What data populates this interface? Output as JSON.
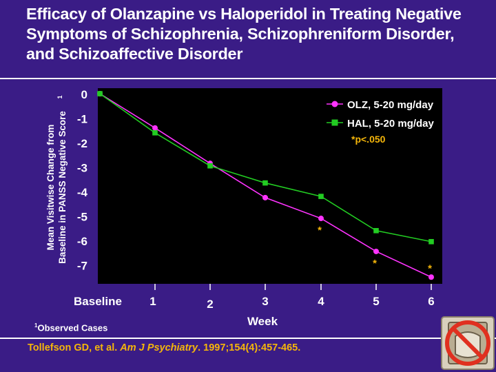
{
  "title_lines": [
    "Efficacy of Olanzapine vs Haloperidol in Treating Negative",
    "Symptoms of Schizophrenia, Schizophreniform Disorder,",
    "and Schizoaffective Disorder"
  ],
  "footnote": {
    "marker": "1",
    "text": "Observed Cases"
  },
  "citation": {
    "authors": "Tollefson GD, et al. ",
    "journal": "Am J Psychiatry",
    "details": ". 1997;154(4):457-465."
  },
  "colors": {
    "background": "#3a1c86",
    "plot_background": "#000000",
    "olz": "#ff33ff",
    "hal": "#22cc22",
    "text": "#ffffff",
    "accent": "#f5b60a"
  },
  "chart_data": {
    "type": "line",
    "title": "Efficacy of Olanzapine vs Haloperidol in Treating Negative Symptoms of Schizophrenia, Schizophreniform Disorder, and Schizoaffective Disorder",
    "xlabel": "Week",
    "ylabel_lines": [
      "Mean Visitwise Change from",
      "Baseline in PANSS Negative Score"
    ],
    "ylabel_superscript": "1",
    "x": [
      0,
      1,
      2,
      3,
      4,
      5,
      6
    ],
    "x_tick_labels": [
      "Baseline",
      "1",
      "2",
      "3",
      "4",
      "5",
      "6"
    ],
    "y_tick_labels": [
      "0",
      "-1",
      "-2",
      "-3",
      "-4",
      "-5",
      "-6",
      "-7"
    ],
    "ylim": [
      -7.8,
      0.1
    ],
    "series": [
      {
        "name": "OLZ, 5-20 mg/day",
        "marker": "circle",
        "values": [
          0,
          -1.4,
          -2.85,
          -4.25,
          -5.1,
          -6.45,
          -7.5
        ]
      },
      {
        "name": "HAL, 5-20 mg/day",
        "marker": "square",
        "values": [
          0,
          -1.6,
          -2.95,
          -3.65,
          -4.2,
          -5.6,
          -6.05
        ]
      }
    ],
    "significance_note": "*p<.050",
    "significant_weeks": [
      4,
      5,
      6
    ],
    "significance_marker": "*",
    "legend_position": "top-right"
  }
}
